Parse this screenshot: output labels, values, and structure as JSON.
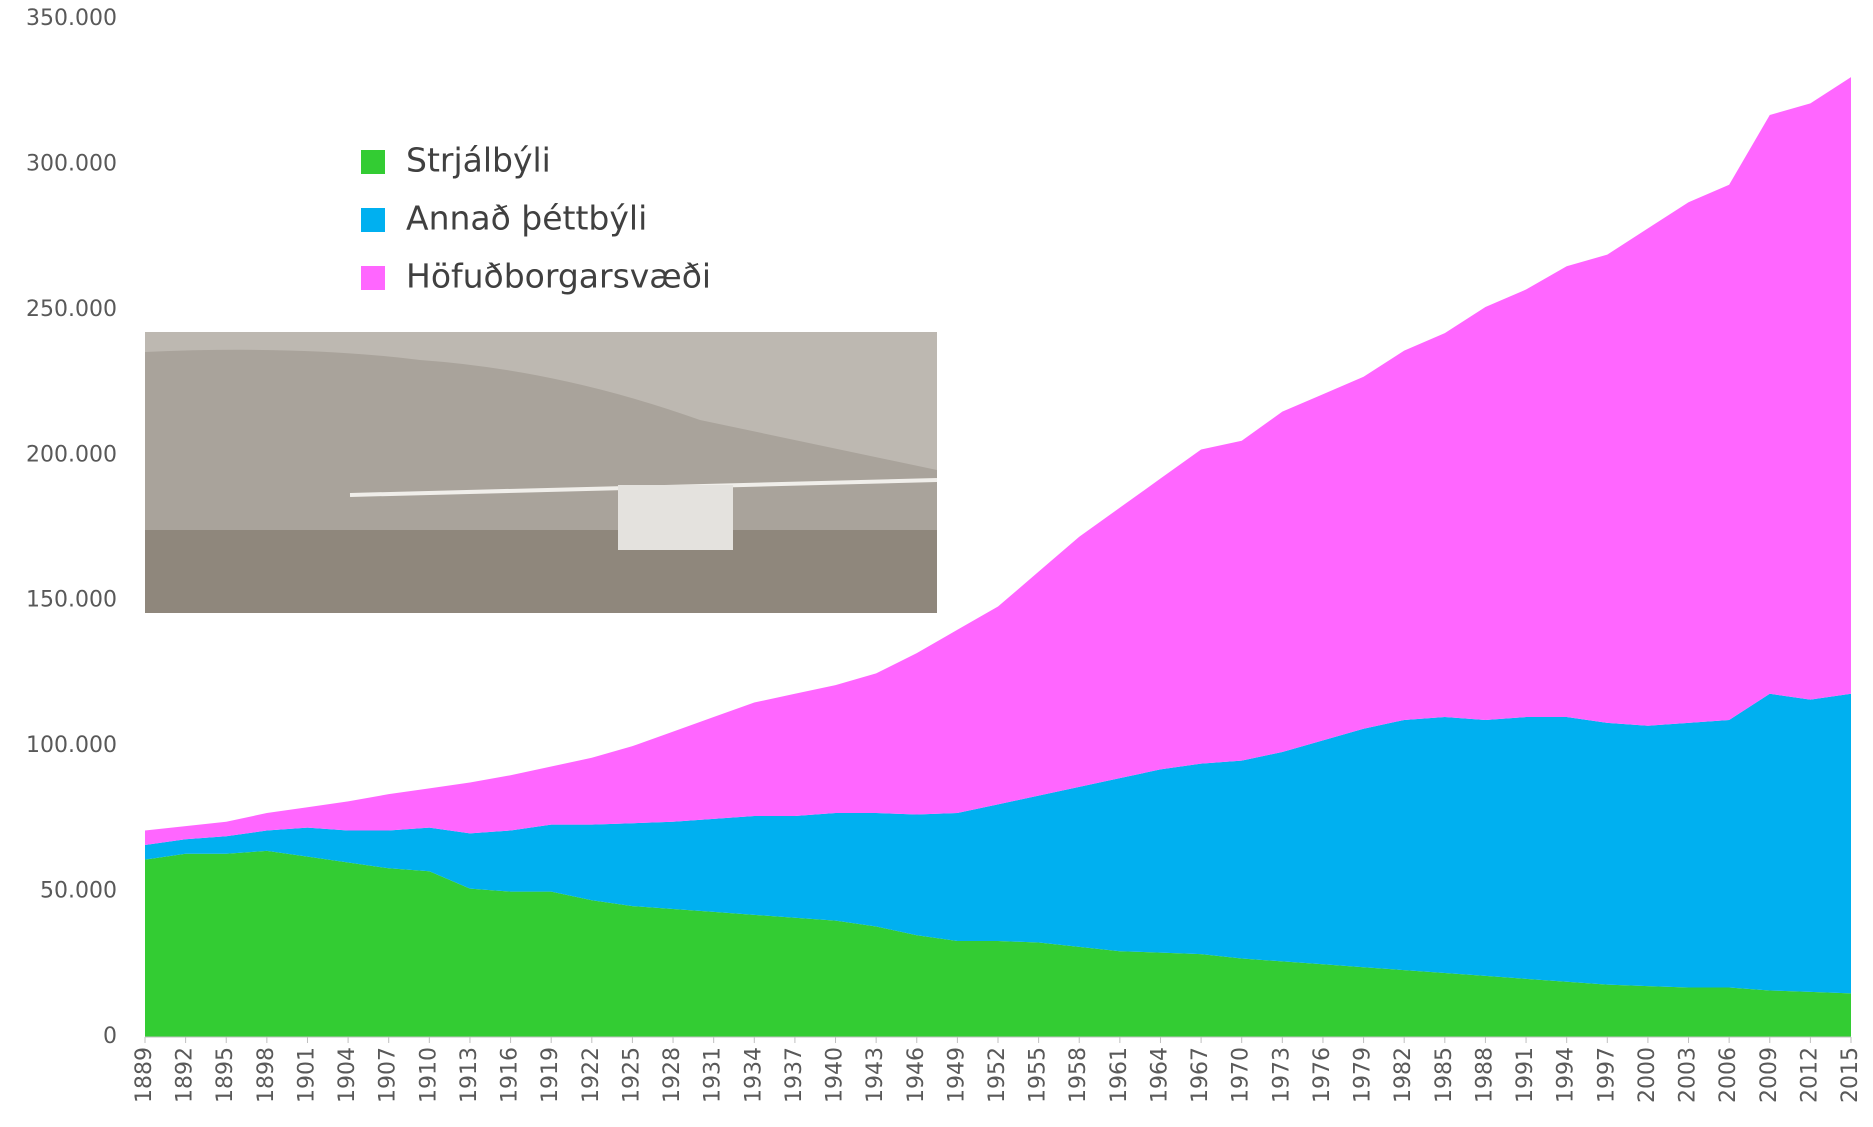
{
  "chart_data": {
    "type": "stacked_area",
    "x": [
      1889,
      1892,
      1895,
      1898,
      1901,
      1904,
      1907,
      1910,
      1913,
      1916,
      1919,
      1922,
      1925,
      1928,
      1931,
      1934,
      1937,
      1940,
      1943,
      1946,
      1949,
      1952,
      1955,
      1958,
      1961,
      1964,
      1967,
      1970,
      1973,
      1976,
      1979,
      1982,
      1985,
      1988,
      1991,
      1994,
      1997,
      2000,
      2003,
      2006,
      2009,
      2012,
      2015
    ],
    "xlim": [
      1889,
      2015
    ],
    "xticks": [
      1889,
      1892,
      1895,
      1898,
      1901,
      1904,
      1907,
      1910,
      1913,
      1916,
      1919,
      1922,
      1925,
      1928,
      1931,
      1934,
      1937,
      1940,
      1943,
      1946,
      1949,
      1952,
      1955,
      1958,
      1961,
      1964,
      1967,
      1970,
      1973,
      1976,
      1979,
      1982,
      1985,
      1988,
      1991,
      1994,
      1997,
      2000,
      2003,
      2006,
      2009,
      2012,
      2015
    ],
    "ylim": [
      0,
      350000
    ],
    "yticks": [
      0,
      {
        "value": 50000,
        "label": "50.000"
      },
      {
        "value": 100000,
        "label": "100.000"
      },
      {
        "value": 150000,
        "label": "150.000"
      },
      {
        "value": 200000,
        "label": "200.000"
      },
      {
        "value": 250000,
        "label": "250.000"
      },
      {
        "value": 300000,
        "label": "300.000"
      },
      {
        "value": 350000,
        "label": "350.000"
      }
    ],
    "series": [
      {
        "name": "Strjálbýli",
        "color": "#33cc33",
        "values": [
          61000,
          63000,
          63000,
          64000,
          62000,
          60000,
          58000,
          57000,
          51000,
          50000,
          50000,
          47000,
          45000,
          44000,
          43000,
          42000,
          41000,
          40000,
          38000,
          35000,
          33000,
          33000,
          32500,
          31000,
          29500,
          29000,
          28500,
          27000,
          26000,
          25000,
          24000,
          23000,
          22000,
          21000,
          20000,
          19000,
          18000,
          17500,
          17000,
          17000,
          16000,
          15500,
          15000
        ]
      },
      {
        "name": "Annað þéttbýli",
        "color": "#00b0f0",
        "values": [
          5000,
          5000,
          6000,
          7000,
          10000,
          11000,
          13000,
          15000,
          19000,
          21000,
          23000,
          26000,
          28500,
          30000,
          32000,
          34000,
          35000,
          37000,
          39000,
          41500,
          44000,
          47000,
          50500,
          55000,
          59500,
          63000,
          65500,
          68000,
          72000,
          77000,
          82000,
          86000,
          88000,
          88000,
          90000,
          91000,
          90000,
          89500,
          91000,
          92000,
          102000,
          100500,
          103000
        ]
      },
      {
        "name": "Höfuðborgarsvæði",
        "color": "#ff66ff",
        "values": [
          5000,
          4500,
          5000,
          6000,
          7000,
          10000,
          12500,
          13500,
          17500,
          19000,
          20000,
          23000,
          26500,
          31000,
          35000,
          39000,
          42000,
          44000,
          48000,
          55500,
          63000,
          68000,
          77000,
          86000,
          93000,
          100000,
          108000,
          110000,
          117000,
          119000,
          121000,
          127000,
          132000,
          142000,
          147000,
          155000,
          161000,
          171000,
          179000,
          184000,
          199000,
          205000,
          212000
        ]
      }
    ]
  }
}
